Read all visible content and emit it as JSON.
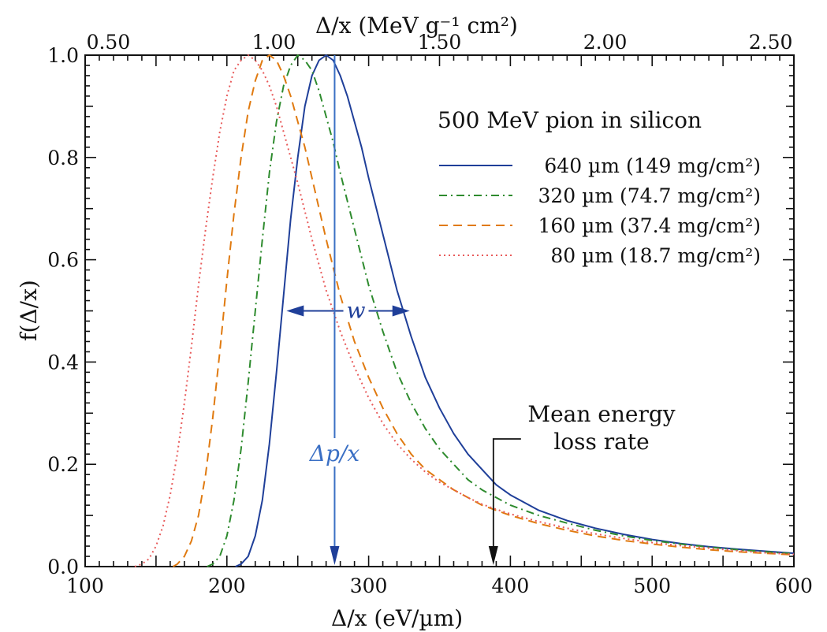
{
  "chart_data": {
    "type": "line",
    "title": "500 MeV pion in silicon",
    "xlabel": "Δ/x   (eV/µm)",
    "x2label": "Δ/x   (MeV g⁻¹ cm²)",
    "ylabel": "f(Δ/x)",
    "xlim": [
      100,
      600
    ],
    "ylim": [
      0,
      1.0
    ],
    "x2lim": [
      0.43,
      2.57
    ],
    "xticks": [
      100,
      200,
      300,
      400,
      500,
      600
    ],
    "xtick_labels": [
      "100",
      "200",
      "300",
      "400",
      "500",
      "600"
    ],
    "x2ticks": [
      0.5,
      1.0,
      1.5,
      2.0,
      2.5
    ],
    "x2tick_labels": [
      "0.50",
      "1.00",
      "1.50",
      "2.00",
      "2.50"
    ],
    "yticks": [
      0,
      0.2,
      0.4,
      0.6,
      0.8,
      1.0
    ],
    "ytick_labels": [
      "0.0",
      "0.2",
      "0.4",
      "0.6",
      "0.8",
      "1.0"
    ],
    "grid": false,
    "legend_position": "top-right",
    "series": [
      {
        "name": "640 µm (149 mg/cm²)",
        "color": "#1f3f99",
        "dash": "solid",
        "x": [
          206,
          210,
          215,
          220,
          225,
          230,
          235,
          240,
          245,
          250,
          255,
          260,
          265,
          270,
          275,
          280,
          285,
          290,
          295,
          300,
          310,
          320,
          330,
          340,
          350,
          360,
          370,
          380,
          390,
          400,
          420,
          440,
          460,
          480,
          500,
          520,
          540,
          560,
          580,
          600
        ],
        "y": [
          0.0,
          0.005,
          0.02,
          0.06,
          0.13,
          0.24,
          0.38,
          0.53,
          0.68,
          0.8,
          0.9,
          0.96,
          0.99,
          1.0,
          0.99,
          0.96,
          0.92,
          0.87,
          0.82,
          0.76,
          0.65,
          0.54,
          0.45,
          0.37,
          0.31,
          0.26,
          0.22,
          0.19,
          0.16,
          0.14,
          0.11,
          0.09,
          0.075,
          0.063,
          0.053,
          0.045,
          0.039,
          0.034,
          0.03,
          0.026
        ]
      },
      {
        "name": "320 µm (74.7 mg/cm²)",
        "color": "#2e8b2e",
        "dash": "dashdot",
        "x": [
          186,
          190,
          195,
          200,
          205,
          210,
          215,
          220,
          225,
          230,
          235,
          240,
          245,
          250,
          255,
          260,
          265,
          270,
          275,
          280,
          290,
          300,
          310,
          320,
          330,
          340,
          350,
          360,
          370,
          380,
          390,
          400,
          420,
          440,
          460,
          480,
          500,
          520,
          540,
          560,
          580,
          600
        ],
        "y": [
          0.0,
          0.005,
          0.02,
          0.06,
          0.13,
          0.23,
          0.36,
          0.5,
          0.64,
          0.77,
          0.87,
          0.94,
          0.98,
          1.0,
          0.99,
          0.97,
          0.93,
          0.88,
          0.83,
          0.77,
          0.66,
          0.55,
          0.46,
          0.38,
          0.32,
          0.27,
          0.23,
          0.2,
          0.17,
          0.15,
          0.135,
          0.12,
          0.1,
          0.085,
          0.071,
          0.06,
          0.051,
          0.044,
          0.038,
          0.033,
          0.029,
          0.025
        ]
      },
      {
        "name": "160 µm (37.4 mg/cm²)",
        "color": "#e07a10",
        "dash": "dashed",
        "x": [
          162,
          165,
          170,
          175,
          180,
          185,
          190,
          195,
          200,
          205,
          210,
          215,
          220,
          225,
          230,
          235,
          240,
          245,
          250,
          255,
          260,
          265,
          270,
          280,
          290,
          300,
          310,
          320,
          330,
          340,
          350,
          360,
          370,
          380,
          390,
          400,
          420,
          440,
          460,
          480,
          500,
          520,
          540,
          560,
          580,
          600
        ],
        "y": [
          0.0,
          0.005,
          0.02,
          0.05,
          0.1,
          0.18,
          0.29,
          0.42,
          0.56,
          0.69,
          0.8,
          0.89,
          0.95,
          0.99,
          1.0,
          0.99,
          0.96,
          0.92,
          0.87,
          0.82,
          0.76,
          0.7,
          0.64,
          0.53,
          0.44,
          0.37,
          0.31,
          0.26,
          0.22,
          0.19,
          0.17,
          0.15,
          0.135,
          0.12,
          0.11,
          0.1,
          0.084,
          0.071,
          0.06,
          0.051,
          0.044,
          0.038,
          0.033,
          0.029,
          0.026,
          0.023
        ]
      },
      {
        "name": "80 µm (18.7 mg/cm²)",
        "color": "#e85a5a",
        "dash": "dotted",
        "x": [
          135,
          140,
          145,
          150,
          155,
          160,
          165,
          170,
          175,
          180,
          185,
          190,
          195,
          200,
          205,
          210,
          215,
          220,
          225,
          230,
          235,
          240,
          245,
          250,
          260,
          270,
          280,
          290,
          300,
          310,
          320,
          330,
          340,
          350,
          360,
          370,
          380,
          390,
          400,
          420,
          440,
          460,
          480,
          500,
          520,
          540,
          560,
          580,
          600
        ],
        "y": [
          0.0,
          0.005,
          0.015,
          0.04,
          0.08,
          0.14,
          0.22,
          0.32,
          0.43,
          0.55,
          0.66,
          0.76,
          0.85,
          0.92,
          0.97,
          0.99,
          1.0,
          0.99,
          0.97,
          0.94,
          0.9,
          0.85,
          0.8,
          0.75,
          0.64,
          0.54,
          0.46,
          0.39,
          0.33,
          0.28,
          0.24,
          0.21,
          0.185,
          0.165,
          0.15,
          0.135,
          0.122,
          0.112,
          0.103,
          0.088,
          0.075,
          0.064,
          0.055,
          0.047,
          0.041,
          0.036,
          0.031,
          0.027,
          0.024
        ]
      }
    ],
    "annotations": {
      "width": {
        "label": "w",
        "x_left": 242,
        "x_right": 329,
        "y": 0.5,
        "color": "#1f3f99"
      },
      "most_probable": {
        "label": "Δp/x",
        "x": 276,
        "y_top": 1.0,
        "y_bottom": 0.0,
        "color": "#3a6fc4"
      },
      "mean": {
        "label_line1": "Mean energy",
        "label_line2": "loss rate",
        "x": 388,
        "y_bottom": 0.0,
        "color": "#111111"
      }
    }
  }
}
